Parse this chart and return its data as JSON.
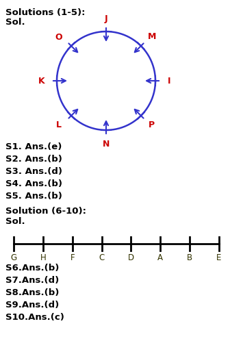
{
  "title1": "Solutions (1-5):",
  "sol1": "Sol.",
  "circle_color": "#3333cc",
  "seat_labels": [
    "J",
    "M",
    "I",
    "P",
    "N",
    "L",
    "K",
    "O"
  ],
  "angles_deg": [
    90,
    45,
    0,
    -45,
    -90,
    -135,
    180,
    135
  ],
  "seat_label_color": "#cc0000",
  "answers_1_5": [
    "S1. Ans.(e)",
    "S2. Ans.(b)",
    "S3. Ans.(d)",
    "S4. Ans.(b)",
    "S5. Ans.(b)"
  ],
  "title2": "Solution (6-10):",
  "sol2": "Sol.",
  "line_labels": [
    "G",
    "H",
    "F",
    "C",
    "D",
    "A",
    "B",
    "E"
  ],
  "line_label_color": "#555500",
  "answers_6_10": [
    "S6.Ans.(b)",
    "S7.Ans.(d)",
    "S8.Ans.(b)",
    "S9.Ans.(d)",
    "S10.Ans.(c)"
  ],
  "text_color": "#000000",
  "bg_color": "#ffffff"
}
